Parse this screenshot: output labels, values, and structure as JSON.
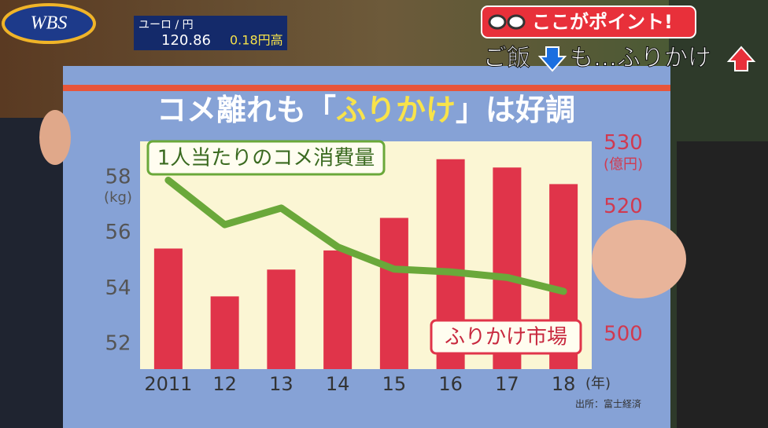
{
  "chart_data": {
    "type": "bar",
    "title": [
      "コメ離れも「",
      "ふりかけ",
      "」は好調"
    ],
    "categories": [
      "2011",
      "12",
      "13",
      "14",
      "15",
      "16",
      "17",
      "18"
    ],
    "x_unit": "(年)",
    "series": [
      {
        "name": "1人当たりのコメ消費量",
        "type": "line",
        "color": "#6aa83a",
        "axis": "y",
        "values": [
          57.9,
          56.3,
          56.9,
          55.5,
          54.7,
          54.6,
          54.4,
          53.9
        ]
      },
      {
        "name": "ふりかけ市場",
        "type": "bar",
        "color": "#e0344a",
        "axis": "y2",
        "values": [
          513.5,
          506.0,
          510.2,
          513.2,
          518.3,
          527.5,
          526.2,
          523.6
        ]
      }
    ],
    "ylim": [
      51.1,
      59.3
    ],
    "yticks": [
      52,
      54,
      56,
      58
    ],
    "y_unit": "(kg)",
    "y2lim": [
      494.6,
      530.3
    ],
    "y2ticks": [
      500,
      510,
      520,
      530
    ],
    "y2_unit": "(億円)",
    "source": "出所：富士経済"
  },
  "overlay": {
    "logo": "WBS",
    "currency_pair": "ユーロ / 円",
    "rate": "120.86",
    "change": "0.18円高",
    "point_title": "ここがポイント!",
    "point_text": [
      "ご飯",
      "も…ふりかけ"
    ]
  }
}
